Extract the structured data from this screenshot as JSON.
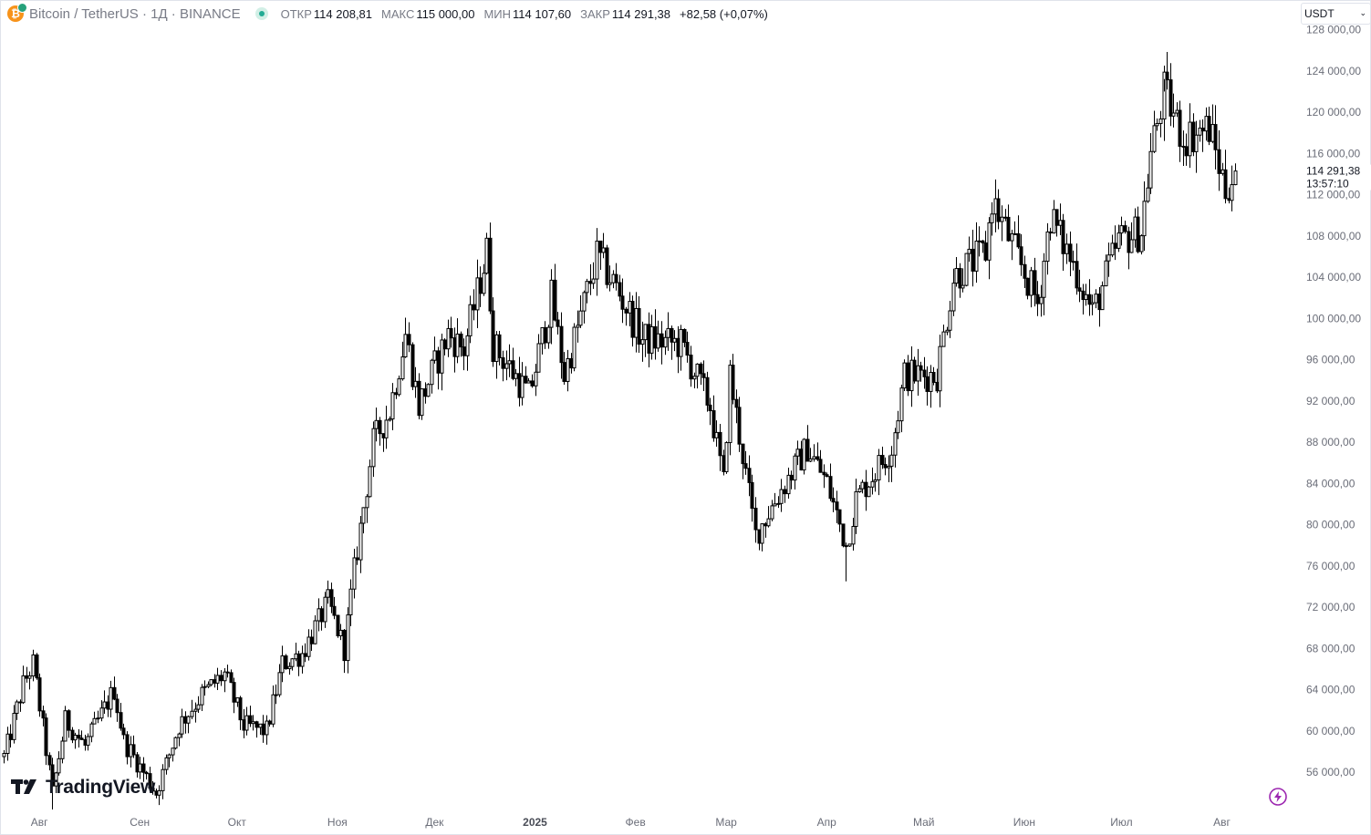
{
  "legend": {
    "symbol": "Bitcoin / TetherUS · 1Д · BINANCE",
    "open_label": "ОТКР",
    "open": "114 208,81",
    "high_label": "МАКС",
    "high": "115 000,00",
    "low_label": "МИН",
    "low": "114 107,60",
    "close_label": "ЗАКР",
    "close": "114 291,38",
    "change": "+82,58 (+0,07%)"
  },
  "currency_select": "USDT",
  "last_price": {
    "price": "114 291,38",
    "countdown": "13:57:10"
  },
  "logo_text": "TradingView",
  "icons": {
    "logo": "tradingview-logo-icon",
    "coin": "bitcoin-icon",
    "status": "market-status-icon",
    "bolt": "lightning-icon",
    "dropdown": "chevron-down-icon"
  },
  "colors": {
    "candle": "#000000",
    "background": "#ffffff",
    "axis_text": "#6a6d78",
    "status_green": "#22ab94"
  },
  "chart_data": {
    "type": "candlestick",
    "title": "Bitcoin / TetherUS · 1Д · BINANCE",
    "xlabel": "",
    "ylabel": "",
    "ylim": [
      52000,
      128000
    ],
    "y_ticks": [
      {
        "value": 56000,
        "label": "56 000,00"
      },
      {
        "value": 60000,
        "label": "60 000,00"
      },
      {
        "value": 64000,
        "label": "64 000,00"
      },
      {
        "value": 68000,
        "label": "68 000,00"
      },
      {
        "value": 72000,
        "label": "72 000,00"
      },
      {
        "value": 76000,
        "label": "76 000,00"
      },
      {
        "value": 80000,
        "label": "80 000,00"
      },
      {
        "value": 84000,
        "label": "84 000,00"
      },
      {
        "value": 88000,
        "label": "88 000,00"
      },
      {
        "value": 92000,
        "label": "92 000,00"
      },
      {
        "value": 96000,
        "label": "96 000,00"
      },
      {
        "value": 100000,
        "label": "100 000,00"
      },
      {
        "value": 104000,
        "label": "104 000,00"
      },
      {
        "value": 108000,
        "label": "108 000,00"
      },
      {
        "value": 112000,
        "label": "112 000,00"
      },
      {
        "value": 116000,
        "label": "116 000,00"
      },
      {
        "value": 120000,
        "label": "120 000,00"
      },
      {
        "value": 124000,
        "label": "124 000,00"
      },
      {
        "value": 128000,
        "label": "128 000,00"
      }
    ],
    "x_ticks": [
      {
        "date": "2024-08-01",
        "label": "Авг"
      },
      {
        "date": "2024-09-01",
        "label": "Сен"
      },
      {
        "date": "2024-10-01",
        "label": "Окт"
      },
      {
        "date": "2024-11-01",
        "label": "Ноя"
      },
      {
        "date": "2024-12-01",
        "label": "Дек"
      },
      {
        "date": "2025-01-01",
        "label": "2025",
        "bold": true
      },
      {
        "date": "2025-02-01",
        "label": "Фев"
      },
      {
        "date": "2025-03-01",
        "label": "Мар"
      },
      {
        "date": "2025-04-01",
        "label": "Апр"
      },
      {
        "date": "2025-05-01",
        "label": "Май"
      },
      {
        "date": "2025-06-01",
        "label": "Июн"
      },
      {
        "date": "2025-07-01",
        "label": "Июл"
      },
      {
        "date": "2025-08-01",
        "label": "Авг"
      }
    ],
    "x_range": [
      "2024-07-21",
      "2025-08-20"
    ],
    "last_close": 114291.38,
    "close_path": [
      {
        "date": "2024-07-21",
        "close": 57500
      },
      {
        "date": "2024-07-27",
        "close": 64500
      },
      {
        "date": "2024-07-30",
        "close": 66500
      },
      {
        "date": "2024-08-05",
        "close": 54000
      },
      {
        "date": "2024-08-09",
        "close": 61000
      },
      {
        "date": "2024-08-15",
        "close": 58500
      },
      {
        "date": "2024-08-24",
        "close": 64000
      },
      {
        "date": "2024-08-27",
        "close": 59000
      },
      {
        "date": "2024-09-06",
        "close": 54000
      },
      {
        "date": "2024-09-13",
        "close": 60500
      },
      {
        "date": "2024-09-20",
        "close": 63500
      },
      {
        "date": "2024-09-27",
        "close": 65500
      },
      {
        "date": "2024-10-03",
        "close": 60500
      },
      {
        "date": "2024-10-10",
        "close": 60000
      },
      {
        "date": "2024-10-15",
        "close": 66500
      },
      {
        "date": "2024-10-21",
        "close": 67500
      },
      {
        "date": "2024-10-29",
        "close": 72500
      },
      {
        "date": "2024-11-03",
        "close": 68000
      },
      {
        "date": "2024-11-06",
        "close": 75500
      },
      {
        "date": "2024-11-12",
        "close": 88000
      },
      {
        "date": "2024-11-17",
        "close": 91000
      },
      {
        "date": "2024-11-22",
        "close": 98500
      },
      {
        "date": "2024-11-26",
        "close": 91500
      },
      {
        "date": "2024-12-05",
        "close": 98500
      },
      {
        "date": "2024-12-10",
        "close": 97000
      },
      {
        "date": "2024-12-17",
        "close": 106500
      },
      {
        "date": "2024-12-19",
        "close": 97500
      },
      {
        "date": "2024-12-30",
        "close": 92500
      },
      {
        "date": "2025-01-06",
        "close": 102000
      },
      {
        "date": "2025-01-10",
        "close": 94500
      },
      {
        "date": "2025-01-20",
        "close": 106000
      },
      {
        "date": "2025-01-26",
        "close": 103000
      },
      {
        "date": "2025-02-03",
        "close": 98000
      },
      {
        "date": "2025-02-15",
        "close": 97500
      },
      {
        "date": "2025-02-24",
        "close": 91500
      },
      {
        "date": "2025-02-28",
        "close": 84000
      },
      {
        "date": "2025-03-02",
        "close": 94500
      },
      {
        "date": "2025-03-10",
        "close": 79000
      },
      {
        "date": "2025-03-20",
        "close": 84500
      },
      {
        "date": "2025-03-26",
        "close": 87500
      },
      {
        "date": "2025-04-01",
        "close": 84000
      },
      {
        "date": "2025-04-07",
        "close": 78000
      },
      {
        "date": "2025-04-10",
        "close": 82500
      },
      {
        "date": "2025-04-21",
        "close": 87500
      },
      {
        "date": "2025-04-25",
        "close": 94500
      },
      {
        "date": "2025-05-05",
        "close": 94500
      },
      {
        "date": "2025-05-10",
        "close": 104000
      },
      {
        "date": "2025-05-20",
        "close": 106500
      },
      {
        "date": "2025-05-22",
        "close": 111500
      },
      {
        "date": "2025-05-29",
        "close": 106500
      },
      {
        "date": "2025-06-05",
        "close": 101500
      },
      {
        "date": "2025-06-09",
        "close": 110000
      },
      {
        "date": "2025-06-17",
        "close": 104500
      },
      {
        "date": "2025-06-22",
        "close": 100500
      },
      {
        "date": "2025-06-30",
        "close": 107500
      },
      {
        "date": "2025-07-07",
        "close": 108500
      },
      {
        "date": "2025-07-10",
        "close": 116000
      },
      {
        "date": "2025-07-14",
        "close": 122000
      },
      {
        "date": "2025-07-20",
        "close": 117500
      },
      {
        "date": "2025-07-28",
        "close": 118500
      },
      {
        "date": "2025-08-02",
        "close": 112500
      },
      {
        "date": "2025-08-05",
        "close": 114291
      }
    ],
    "notable": {
      "high": {
        "date": "2025-07-14",
        "value": 123200
      },
      "low_2024": {
        "date": "2024-08-05",
        "value": 49000
      },
      "low_2025": {
        "date": "2025-04-07",
        "value": 74500
      }
    },
    "grid": false
  }
}
